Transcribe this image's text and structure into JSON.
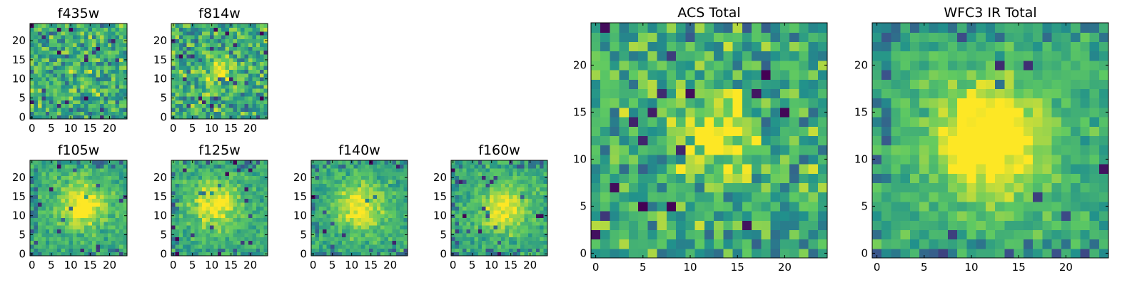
{
  "figure": {
    "colormap": [
      "#440154",
      "#3b528b",
      "#21918c",
      "#5ec962",
      "#fde725"
    ]
  },
  "chart_data": [
    {
      "type": "heatmap",
      "title": "f435w",
      "grid": [
        25,
        25
      ],
      "xlim": [
        -0.5,
        24.5
      ],
      "ylim": [
        -0.5,
        24.5
      ],
      "x_ticks": [
        "0",
        "5",
        "10",
        "15",
        "20"
      ],
      "y_ticks": [
        "0",
        "5",
        "10",
        "15",
        "20"
      ],
      "source_center": [
        13,
        12
      ],
      "source_strength": 0.05,
      "noise": "high",
      "seed": 11
    },
    {
      "type": "heatmap",
      "title": "f814w",
      "grid": [
        25,
        25
      ],
      "xlim": [
        -0.5,
        24.5
      ],
      "ylim": [
        -0.5,
        24.5
      ],
      "x_ticks": [
        "0",
        "5",
        "10",
        "15",
        "20"
      ],
      "y_ticks": [
        "0",
        "5",
        "10",
        "15",
        "20"
      ],
      "source_center": [
        12,
        12
      ],
      "source_strength": 0.3,
      "noise": "high",
      "seed": 23
    },
    {
      "type": "heatmap",
      "title": "f105w",
      "grid": [
        25,
        25
      ],
      "xlim": [
        -0.5,
        24.5
      ],
      "ylim": [
        -0.5,
        24.5
      ],
      "x_ticks": [
        "0",
        "5",
        "10",
        "15",
        "20"
      ],
      "y_ticks": [
        "0",
        "5",
        "10",
        "15",
        "20"
      ],
      "source_center": [
        13,
        13
      ],
      "source_strength": 0.45,
      "noise": "low",
      "seed": 37
    },
    {
      "type": "heatmap",
      "title": "f125w",
      "grid": [
        25,
        25
      ],
      "xlim": [
        -0.5,
        24.5
      ],
      "ylim": [
        -0.5,
        24.5
      ],
      "x_ticks": [
        "0",
        "5",
        "10",
        "15",
        "20"
      ],
      "y_ticks": [
        "0",
        "5",
        "10",
        "15",
        "20"
      ],
      "source_center": [
        11,
        13
      ],
      "source_strength": 0.4,
      "noise": "low",
      "seed": 41
    },
    {
      "type": "heatmap",
      "title": "f140w",
      "grid": [
        25,
        25
      ],
      "xlim": [
        -0.5,
        24.5
      ],
      "ylim": [
        -0.5,
        24.5
      ],
      "x_ticks": [
        "0",
        "5",
        "10",
        "15",
        "20"
      ],
      "y_ticks": [
        "0",
        "5",
        "10",
        "15",
        "20"
      ],
      "source_center": [
        12,
        12
      ],
      "source_strength": 0.4,
      "noise": "low",
      "seed": 53
    },
    {
      "type": "heatmap",
      "title": "f160w",
      "grid": [
        25,
        25
      ],
      "xlim": [
        -0.5,
        24.5
      ],
      "ylim": [
        -0.5,
        24.5
      ],
      "x_ticks": [
        "0",
        "5",
        "10",
        "15",
        "20"
      ],
      "y_ticks": [
        "0",
        "5",
        "10",
        "15",
        "20"
      ],
      "source_center": [
        13,
        12
      ],
      "source_strength": 0.4,
      "noise": "low",
      "seed": 67
    },
    {
      "type": "heatmap",
      "title": "ACS Total",
      "grid": [
        25,
        25
      ],
      "xlim": [
        -0.5,
        24.5
      ],
      "ylim": [
        -0.5,
        24.5
      ],
      "x_ticks": [
        "0",
        "5",
        "10",
        "15",
        "20"
      ],
      "y_ticks": [
        "0",
        "5",
        "10",
        "15",
        "20"
      ],
      "source_center": [
        13,
        12
      ],
      "source_strength": 0.35,
      "noise": "high",
      "seed": 79
    },
    {
      "type": "heatmap",
      "title": "WFC3 IR Total",
      "grid": [
        25,
        25
      ],
      "xlim": [
        -0.5,
        24.5
      ],
      "ylim": [
        -0.5,
        24.5
      ],
      "x_ticks": [
        "0",
        "5",
        "10",
        "15",
        "20"
      ],
      "y_ticks": [
        "0",
        "5",
        "10",
        "15",
        "20"
      ],
      "source_center": [
        12,
        12
      ],
      "source_strength": 0.55,
      "noise": "low",
      "seed": 97
    }
  ]
}
